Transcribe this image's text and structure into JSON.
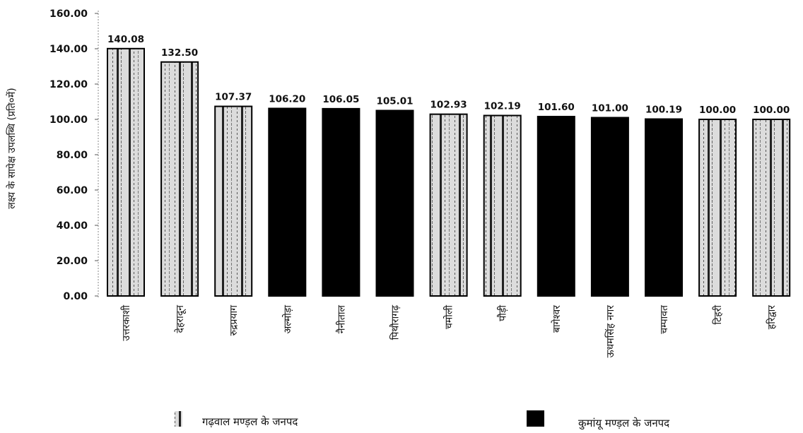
{
  "chart_data": {
    "type": "bar",
    "ylabel": "लक्ष्य के सापेक्ष उपलब्धि (प्रति०में)",
    "ylim": [
      0,
      160
    ],
    "yticks": [
      "0.00",
      "20.00",
      "40.00",
      "60.00",
      "80.00",
      "100.00",
      "120.00",
      "140.00",
      "160.00"
    ],
    "categories": [
      "उत्तरकाशी",
      "देहरादून",
      "रुद्रप्रयाग",
      "अल्मोड़ा",
      "नैनीताल",
      "पिथौरागढ़",
      "चमोली",
      "पौड़ी",
      "बागेश्वर",
      "ऊधमसिंह नगर",
      "चम्पावत",
      "टिहरी",
      "हरिद्वार"
    ],
    "values": [
      140.08,
      132.5,
      107.37,
      106.2,
      106.05,
      105.01,
      102.93,
      102.19,
      101.6,
      101.0,
      100.19,
      100.0,
      100.0
    ],
    "value_labels": [
      "140.08",
      "132.50",
      "107.37",
      "106.20",
      "106.05",
      "105.01",
      "102.93",
      "102.19",
      "101.60",
      "101.00",
      "100.19",
      "100.00",
      "100.00"
    ],
    "groups": [
      "garhwal",
      "garhwal",
      "garhwal",
      "kumaon",
      "kumaon",
      "kumaon",
      "garhwal",
      "garhwal",
      "kumaon",
      "kumaon",
      "kumaon",
      "garhwal",
      "garhwal"
    ],
    "legend": {
      "placement": "bottom",
      "garhwal": "गढ़वाल मण्ड़ल के जनपद",
      "kumaon": "कुमांयू मण्ड़ल के जनपद"
    },
    "grid": false,
    "colors": {
      "kumaon": "#000000",
      "garhwal_fill": "#d9d9d9",
      "garhwal_stripe": "#1a1a1a",
      "outline": "#000000"
    }
  }
}
